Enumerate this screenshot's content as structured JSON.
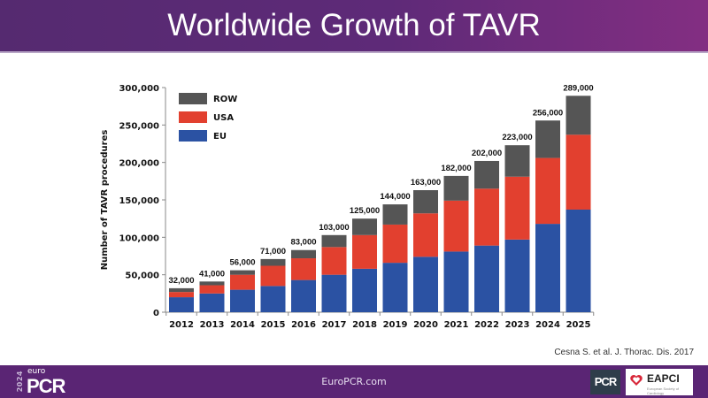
{
  "header": {
    "title": "Worldwide Growth of TAVR"
  },
  "chart_data": {
    "type": "bar",
    "stacked": true,
    "title": "Worldwide Growth of TAVR",
    "xlabel": "",
    "ylabel": "Number of TAVR procedures",
    "ylim": [
      0,
      300000
    ],
    "yticks": [
      0,
      50000,
      100000,
      150000,
      200000,
      250000,
      300000
    ],
    "ytick_labels": [
      "0",
      "50,000",
      "100,000",
      "150,000",
      "200,000",
      "250,000",
      "300,000"
    ],
    "grid": false,
    "legend_position": "top-left",
    "categories": [
      "2012",
      "2013",
      "2014",
      "2015",
      "2016",
      "2017",
      "2018",
      "2019",
      "2020",
      "2021",
      "2022",
      "2023",
      "2024",
      "2025"
    ],
    "series": [
      {
        "name": "EU",
        "color": "#2b52a3",
        "values": [
          20000,
          25000,
          30000,
          35000,
          43000,
          50000,
          58000,
          66000,
          74000,
          81000,
          89000,
          97000,
          118000,
          137000
        ]
      },
      {
        "name": "USA",
        "color": "#e2402f",
        "values": [
          7000,
          11000,
          20000,
          27000,
          29000,
          37000,
          45000,
          51000,
          58000,
          68000,
          76000,
          84000,
          88000,
          100000
        ]
      },
      {
        "name": "ROW",
        "color": "#555555",
        "values": [
          5000,
          5000,
          6000,
          9000,
          11000,
          16000,
          22000,
          27000,
          31000,
          33000,
          37000,
          42000,
          50000,
          52000
        ]
      }
    ],
    "legend": [
      "ROW",
      "USA",
      "EU"
    ],
    "totals": [
      32000,
      41000,
      56000,
      71000,
      83000,
      103000,
      125000,
      144000,
      163000,
      182000,
      202000,
      223000,
      256000,
      289000
    ],
    "total_labels": [
      "32,000",
      "41,000",
      "56,000",
      "71,000",
      "83,000",
      "103,000",
      "125,000",
      "144,000",
      "163,000",
      "182,000",
      "202,000",
      "223,000",
      "256,000",
      "289,000"
    ]
  },
  "citation": "Cesna S. et al. J. Thorac. Dis. 2017",
  "footer": {
    "url": "EuroPCR.com",
    "logo_year": "2024",
    "logo_euro": "euro",
    "logo_pcr": "PCR",
    "badge_pcr": "PCR",
    "badge_eapci": "EAPCI",
    "badge_eapci_sub": "European Society of Cardiology"
  }
}
